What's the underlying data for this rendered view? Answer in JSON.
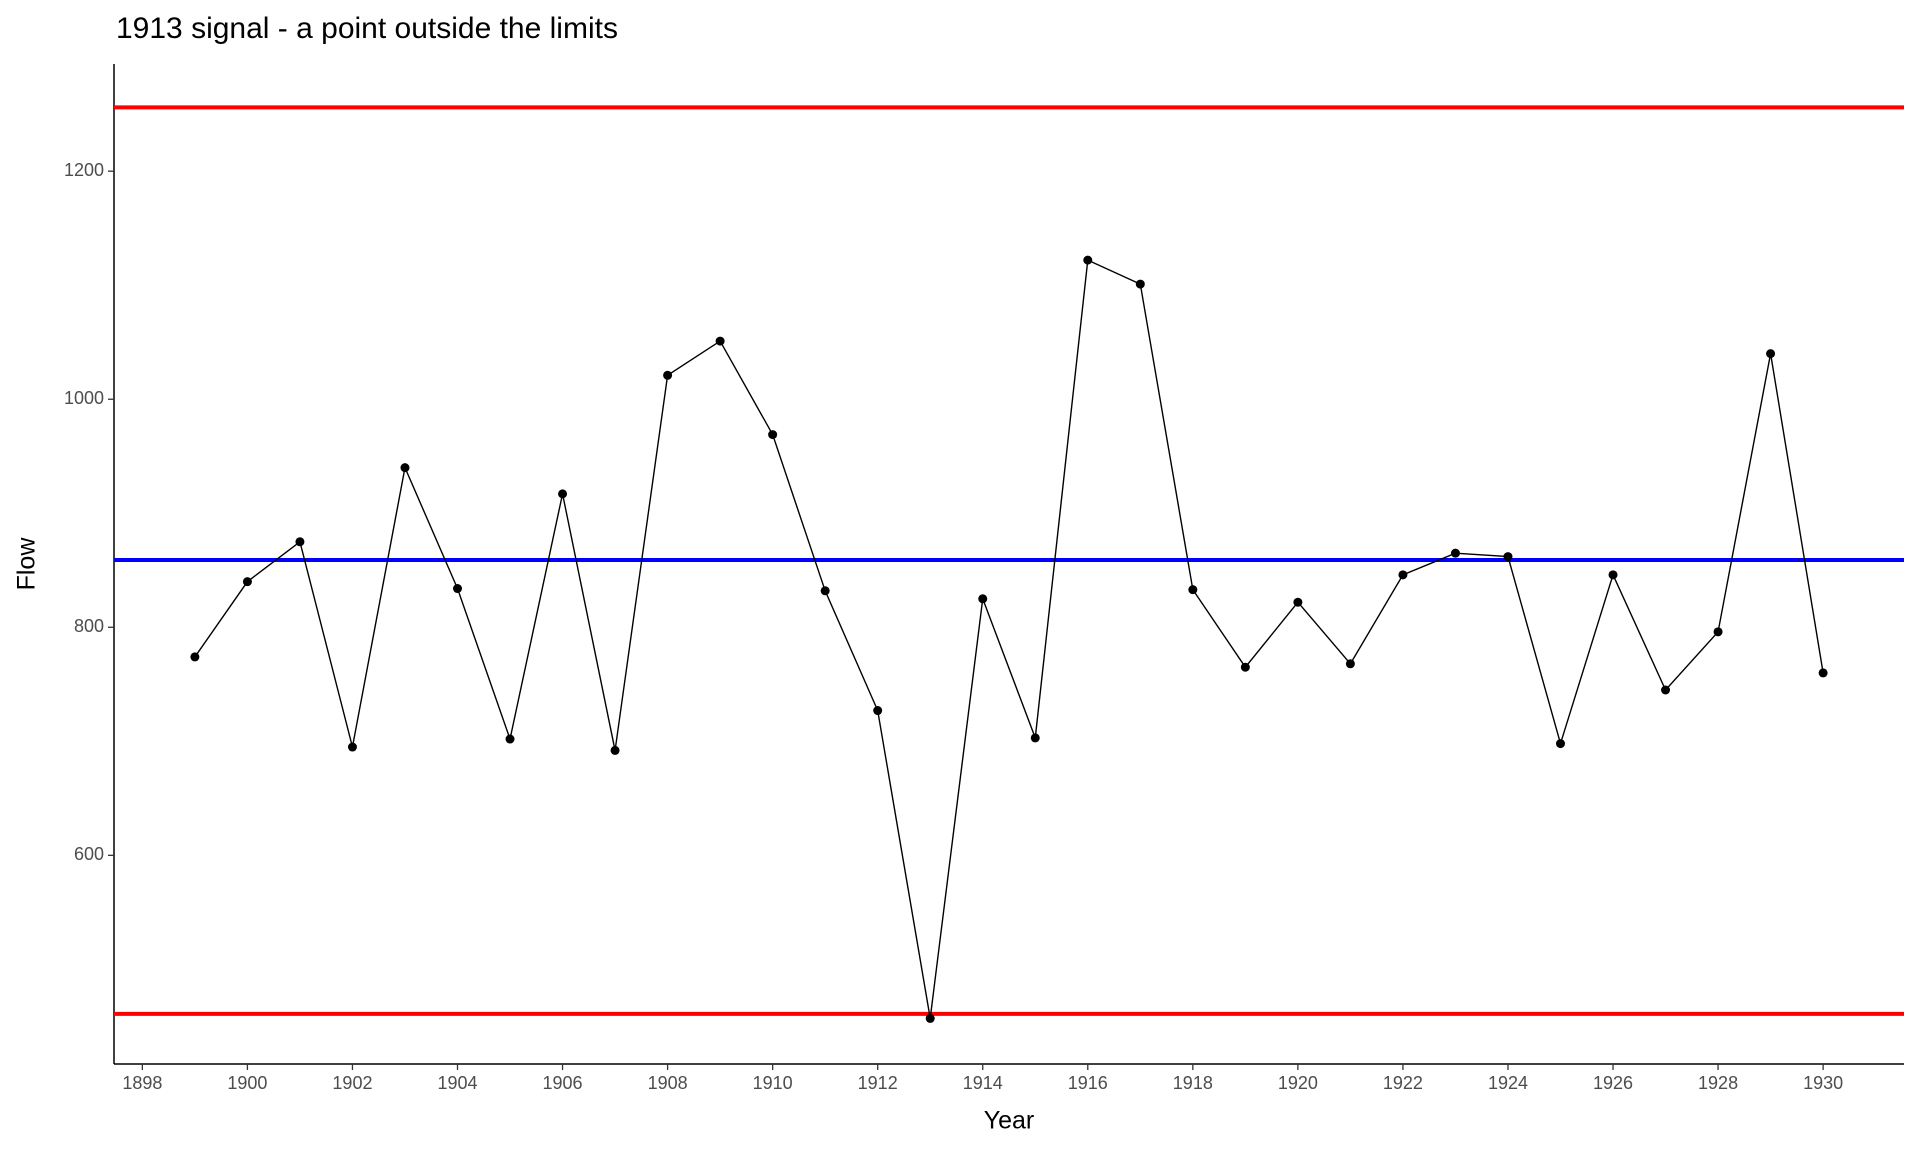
{
  "chart_data": {
    "type": "line",
    "title": "1913 signal - a point outside the limits",
    "x_label": "Year",
    "y_label": "Flow",
    "x": [
      1899,
      1900,
      1901,
      1902,
      1903,
      1904,
      1905,
      1906,
      1907,
      1908,
      1909,
      1910,
      1911,
      1912,
      1913,
      1914,
      1915,
      1916,
      1917,
      1918,
      1919,
      1920,
      1921,
      1922,
      1923,
      1924,
      1925,
      1926,
      1927,
      1928,
      1929,
      1930
    ],
    "series": [
      {
        "color": "#000000",
        "values": [
          774,
          840,
          875,
          695,
          940,
          834,
          702,
          917,
          692,
          1021,
          1051,
          969,
          832,
          727,
          457,
          825,
          703,
          1122,
          1101,
          833,
          765,
          822,
          768,
          846,
          865,
          862,
          698,
          846,
          745,
          796,
          1040,
          760
        ]
      }
    ],
    "hlines": [
      {
        "value": 1256,
        "color": "#ff0000"
      },
      {
        "value": 859,
        "color": "#0000ff"
      },
      {
        "value": 461,
        "color": "#ff0000"
      }
    ],
    "xlim": [
      1897.46,
      1931.54
    ],
    "ylim": [
      417,
      1294
    ],
    "xticks": [
      1898,
      1900,
      1902,
      1904,
      1906,
      1908,
      1910,
      1912,
      1914,
      1916,
      1918,
      1920,
      1922,
      1924,
      1926,
      1928,
      1930
    ],
    "yticks": [
      600,
      800,
      1000,
      1200
    ],
    "grid": false
  }
}
